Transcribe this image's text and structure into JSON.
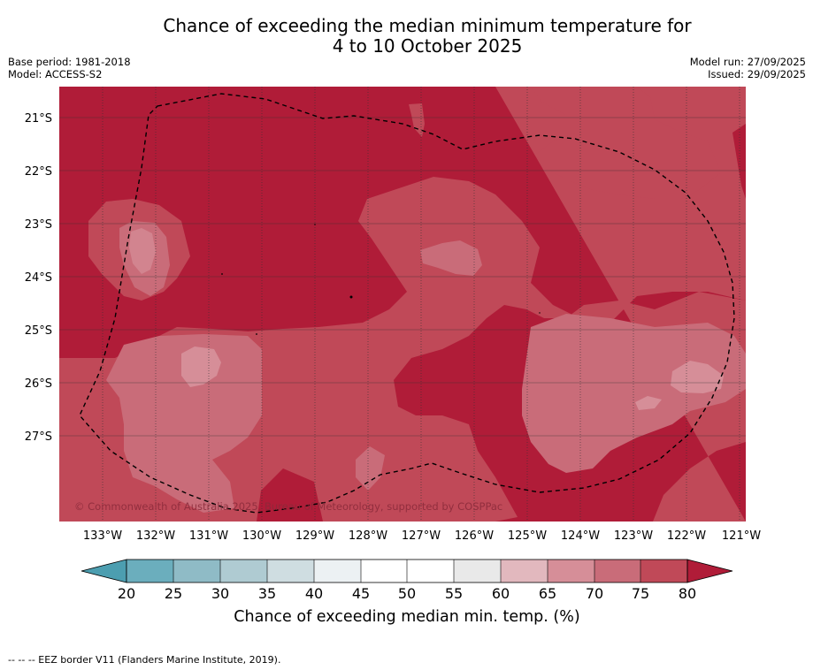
{
  "title": {
    "line1": "Chance of exceeding the median minimum temperature for",
    "line2": "4 to 10 October 2025"
  },
  "meta": {
    "base_period": "Base period: 1981-2018",
    "model": "Model: ACCESS-S2",
    "model_run": "Model run: 27/09/2025",
    "issued": "Issued: 29/09/2025"
  },
  "map": {
    "lon_labels": [
      "133°W",
      "132°W",
      "131°W",
      "130°W",
      "129°W",
      "128°W",
      "127°W",
      "126°W",
      "125°W",
      "124°W",
      "123°W",
      "122°W",
      "121°W"
    ],
    "lat_labels": [
      "21°S",
      "22°S",
      "23°S",
      "24°S",
      "25°S",
      "26°S",
      "27°S"
    ],
    "copyright": "© Commonwealth of Australia 2025, Bureau of Meteorology, supported by COSPPac"
  },
  "colorbar": {
    "ticks": [
      "20",
      "25",
      "30",
      "35",
      "40",
      "45",
      "50",
      "55",
      "60",
      "65",
      "70",
      "75",
      "80"
    ],
    "label": "Chance of exceeding median min. temp. (%)",
    "colors": [
      "#6baebd",
      "#8fbbc6",
      "#afcbd2",
      "#cfdde1",
      "#ecf1f3",
      "#ffffff",
      "#ffffff",
      "#e9e9e9",
      "#e2b8be",
      "#d68e98",
      "#c96c79",
      "#c04958"
    ],
    "low_color": "#4c9eb0",
    "high_color": "#b01c38"
  },
  "palette": {
    "c80": "#b01c38",
    "c75": "#c04958",
    "c70": "#c96c79",
    "c65": "#d68e98",
    "eez_line": "#000000"
  },
  "footnote": "-- -- -- EEZ border V11 (Flanders Marine Institute, 2019)."
}
